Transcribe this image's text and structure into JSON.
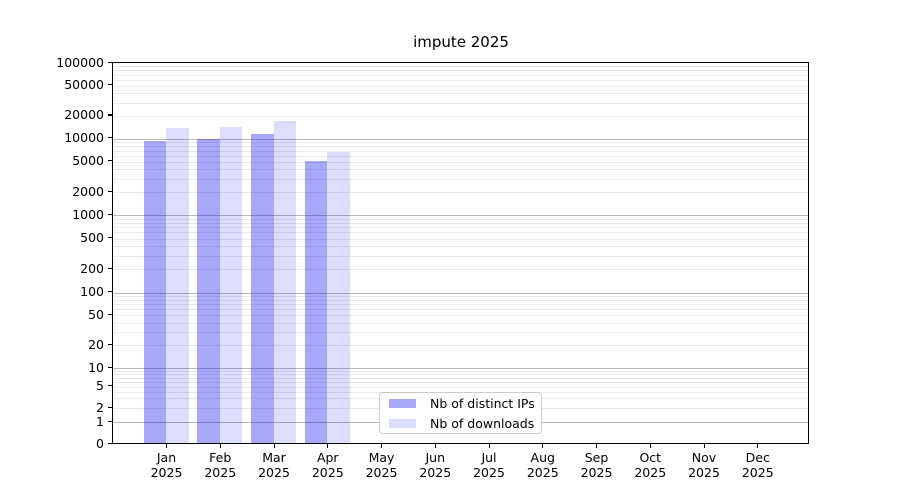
{
  "title": "impute 2025",
  "chart_data": {
    "type": "bar",
    "title": "impute 2025",
    "categories": [
      "Jan 2025",
      "Feb 2025",
      "Mar 2025",
      "Apr 2025",
      "May 2025",
      "Jun 2025",
      "Jul 2025",
      "Aug 2025",
      "Sep 2025",
      "Oct 2025",
      "Nov 2025",
      "Dec 2025"
    ],
    "x": {
      "months": [
        "Jan",
        "Feb",
        "Mar",
        "Apr",
        "May",
        "Jun",
        "Jul",
        "Aug",
        "Sep",
        "Oct",
        "Nov",
        "Dec"
      ],
      "year": "2025"
    },
    "series": [
      {
        "name": "Nb of distinct IPs",
        "color": "rgba(25,25,240,0.38)",
        "values": [
          9300,
          10000,
          11400,
          5100,
          0,
          0,
          0,
          0,
          0,
          0,
          0,
          0
        ]
      },
      {
        "name": "Nb of downloads",
        "color": "rgba(25,25,240,0.15)",
        "values": [
          13900,
          14400,
          17100,
          6800,
          0,
          0,
          0,
          0,
          0,
          0,
          0,
          0
        ]
      }
    ],
    "y_axis": {
      "scale": "symlog",
      "ticks": [
        0,
        1,
        2,
        5,
        10,
        20,
        50,
        100,
        200,
        500,
        1000,
        2000,
        5000,
        10000,
        20000,
        50000,
        100000
      ],
      "lim": [
        0,
        100000
      ]
    },
    "grid": {
      "orientation": "horizontal",
      "major_color": "#b8b8b8",
      "minor_color": "#e8e8e8"
    },
    "legend": {
      "position": "lower-center"
    },
    "colors": {
      "spine": "#000000",
      "background": "#ffffff"
    }
  }
}
